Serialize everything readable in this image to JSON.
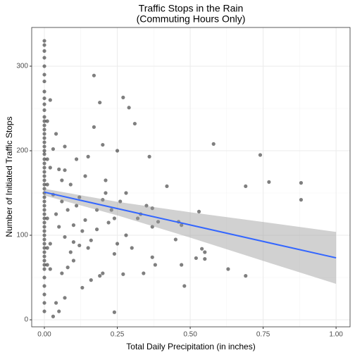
{
  "chart_data": {
    "type": "scatter",
    "title": "Traffic Stops in the Rain",
    "subtitle": "(Commuting Hours Only)",
    "x_label": "Total Daily Precipitation (in inches)",
    "y_label": "Number of Initiated Traffic Stops",
    "xlim": [
      -0.0435,
      1.048
    ],
    "ylim": [
      -8.3,
      345.8
    ],
    "xticks": [
      {
        "value": 0,
        "label": "0.00"
      },
      {
        "value": 0.25,
        "label": "0.25"
      },
      {
        "value": 0.5,
        "label": "0.50"
      },
      {
        "value": 0.75,
        "label": "0.75"
      },
      {
        "value": 1,
        "label": "1.00"
      }
    ],
    "yticks": [
      0,
      100,
      200,
      300
    ],
    "grid": true,
    "color": "#000000",
    "x": [
      0,
      0,
      0,
      0,
      0,
      0,
      0,
      0,
      0,
      0,
      0,
      0,
      0,
      0,
      0,
      0,
      0,
      0,
      0,
      0,
      0,
      0,
      0,
      0,
      0,
      0,
      0,
      0,
      0,
      0,
      0,
      0,
      0,
      0,
      0,
      0,
      0,
      0,
      0,
      0,
      0,
      0,
      0,
      0,
      0,
      0,
      0,
      0,
      0,
      0,
      0,
      0,
      0,
      0.01,
      0.01,
      0.01,
      0.01,
      0.01,
      0.01,
      0.02,
      0.02,
      0.02,
      0.02,
      0.17,
      0.19,
      0.27,
      0.29,
      0.31,
      0.17,
      0.2,
      0.25,
      0.36,
      0.58,
      0.74,
      0.77,
      0.88,
      0.88,
      0.69,
      0.53,
      0.42,
      0.28,
      0.35,
      0.37,
      0.39,
      0.37,
      0.32,
      0.46,
      0.47,
      0.45,
      0.37,
      0.38,
      0.47,
      0.54,
      0.55,
      0.52,
      0.55,
      0.63,
      0.69,
      0.48,
      0.34,
      0.27,
      0.24,
      0.24,
      0.2,
      0.19,
      0.16,
      0.13,
      0.07,
      0.04,
      0.03,
      0.05,
      0.1,
      0.12,
      0.15,
      0.16,
      0.18,
      0.13,
      0.2,
      0.22,
      0.24,
      0.23,
      0.14,
      0.1,
      0.08,
      0.06,
      0.09,
      0.11,
      0.14,
      0.07,
      0.05,
      0.03,
      0.07,
      0.04,
      0.18,
      0.21,
      0.25,
      0.28,
      0.3,
      0.12,
      0.09,
      0.07,
      0.05,
      0.04,
      0.03,
      0.06,
      0.08,
      0.1,
      0.26,
      0.15,
      0.33,
      0.21,
      0.11,
      0.06
    ],
    "values": [
      330,
      325,
      318,
      310,
      300,
      290,
      282,
      270,
      262,
      255,
      248,
      240,
      235,
      230,
      225,
      220,
      215,
      210,
      205,
      200,
      196,
      190,
      185,
      180,
      175,
      170,
      165,
      160,
      155,
      150,
      145,
      140,
      135,
      130,
      125,
      120,
      115,
      110,
      105,
      100,
      95,
      90,
      85,
      80,
      75,
      70,
      65,
      60,
      50,
      40,
      30,
      20,
      10,
      235,
      190,
      160,
      120,
      85,
      65,
      260,
      90,
      60,
      180,
      289,
      257,
      263,
      251,
      232,
      228,
      207,
      200,
      193,
      208,
      195,
      163,
      162,
      142,
      158,
      128,
      158,
      150,
      135,
      132,
      116,
      110,
      120,
      116,
      112,
      95,
      74,
      65,
      65,
      84,
      80,
      73,
      72,
      60,
      52,
      40,
      55,
      54,
      9,
      78,
      55,
      52,
      47,
      38,
      26,
      20,
      4,
      10,
      70,
      88,
      85,
      94,
      107,
      105,
      142,
      115,
      120,
      130,
      118,
      112,
      130,
      140,
      160,
      190,
      170,
      177,
      178,
      202,
      205,
      220,
      130,
      150,
      90,
      100,
      85,
      145,
      80,
      98,
      110,
      125,
      148,
      55,
      62,
      92,
      140,
      193,
      125,
      165,
      135,
      165
    ],
    "regression": {
      "color": "#3366ff",
      "band_color": "#999999",
      "x": [
        0,
        0.25,
        0.5,
        0.75,
        1
      ],
      "values": [
        151,
        131.6,
        112.2,
        92.7,
        73.3
      ],
      "lower": [
        147,
        123.6,
        97.2,
        69.7,
        42.5
      ],
      "upper": [
        155,
        139.6,
        127.2,
        115.7,
        104
      ]
    }
  }
}
